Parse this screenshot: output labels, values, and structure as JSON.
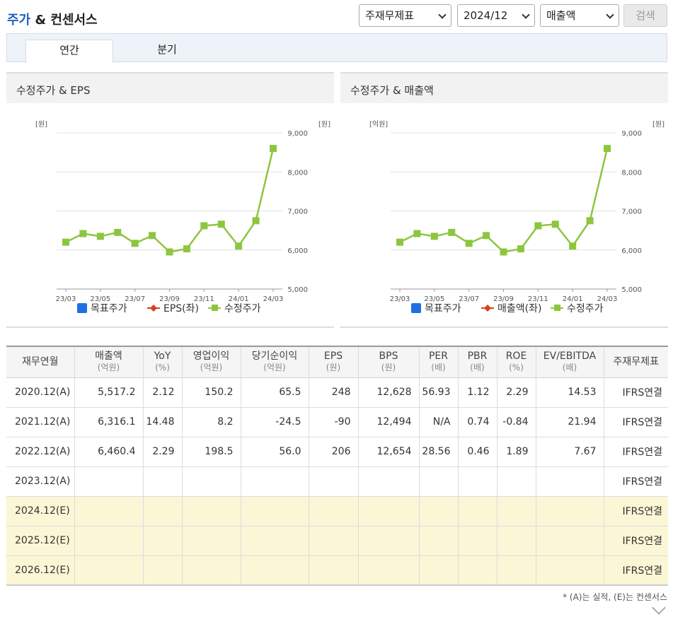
{
  "header": {
    "title_part1": "주가",
    "title_part2": " & 컨센서스",
    "select_type": "주재무제표",
    "select_period": "2024/12",
    "select_metric": "매출액",
    "search_button": "검색"
  },
  "tabs": [
    {
      "label": "연간",
      "active": true
    },
    {
      "label": "분기",
      "active": false
    }
  ],
  "panels": {
    "left": {
      "title": "수정주가 & EPS",
      "left_unit": "[원]",
      "right_unit": "[원]",
      "legend": [
        "목표주가",
        "EPS(좌)",
        "수정주가"
      ]
    },
    "right": {
      "title": "수정주가 & 매출액",
      "left_unit": "[억원]",
      "right_unit": "[원]",
      "legend": [
        "목표주가",
        "매출액(좌)",
        "수정주가"
      ]
    }
  },
  "chart_data": [
    {
      "type": "line",
      "title": "수정주가 & EPS",
      "x": [
        "23/03",
        "23/04",
        "23/05",
        "23/06",
        "23/07",
        "23/08",
        "23/09",
        "23/10",
        "23/11",
        "23/12",
        "24/01",
        "24/02",
        "24/03"
      ],
      "x_tick_labels": [
        "23/03",
        "23/05",
        "23/07",
        "23/09",
        "23/11",
        "24/01",
        "24/03"
      ],
      "y_right_ticks": [
        "5,000",
        "6,000",
        "7,000",
        "8,000",
        "9,000"
      ],
      "y_right_range": [
        5000,
        9000
      ],
      "series": [
        {
          "name": "수정주가",
          "axis": "right",
          "color": "#8cc63f",
          "values": [
            6200,
            6420,
            6350,
            6450,
            6170,
            6370,
            5950,
            6030,
            6620,
            6660,
            6100,
            6750,
            8600
          ]
        }
      ],
      "legend": [
        "목표주가",
        "EPS(좌)",
        "수정주가"
      ],
      "legend_position": "bottom",
      "grid": true
    },
    {
      "type": "line",
      "title": "수정주가 & 매출액",
      "x": [
        "23/03",
        "23/04",
        "23/05",
        "23/06",
        "23/07",
        "23/08",
        "23/09",
        "23/10",
        "23/11",
        "23/12",
        "24/01",
        "24/02",
        "24/03"
      ],
      "x_tick_labels": [
        "23/03",
        "23/05",
        "23/07",
        "23/09",
        "23/11",
        "24/01",
        "24/03"
      ],
      "y_right_ticks": [
        "5,000",
        "6,000",
        "7,000",
        "8,000",
        "9,000"
      ],
      "y_right_range": [
        5000,
        9000
      ],
      "series": [
        {
          "name": "수정주가",
          "axis": "right",
          "color": "#8cc63f",
          "values": [
            6200,
            6420,
            6350,
            6450,
            6170,
            6370,
            5950,
            6030,
            6620,
            6660,
            6100,
            6750,
            8600
          ]
        }
      ],
      "legend": [
        "목표주가",
        "매출액(좌)",
        "수정주가"
      ],
      "legend_position": "bottom",
      "grid": true
    }
  ],
  "legend_colors": {
    "target": "#1f6fe0",
    "eps": "#d9401b",
    "price": "#8cc63f"
  },
  "table": {
    "headers": [
      {
        "label": "재무연월",
        "unit": ""
      },
      {
        "label": "매출액",
        "unit": "(억원)"
      },
      {
        "label": "YoY",
        "unit": "(%)"
      },
      {
        "label": "영업이익",
        "unit": "(억원)"
      },
      {
        "label": "당기순이익",
        "unit": "(억원)"
      },
      {
        "label": "EPS",
        "unit": "(원)"
      },
      {
        "label": "BPS",
        "unit": "(원)"
      },
      {
        "label": "PER",
        "unit": "(배)"
      },
      {
        "label": "PBR",
        "unit": "(배)"
      },
      {
        "label": "ROE",
        "unit": "(%)"
      },
      {
        "label": "EV/EBITDA",
        "unit": "(배)"
      },
      {
        "label": "주재무제표",
        "unit": ""
      }
    ],
    "rows": [
      [
        "2020.12(A)",
        "5,517.2",
        "2.12",
        "150.2",
        "65.5",
        "248",
        "12,628",
        "56.93",
        "1.12",
        "2.29",
        "14.53",
        "IFRS연결"
      ],
      [
        "2021.12(A)",
        "6,316.1",
        "14.48",
        "8.2",
        "-24.5",
        "-90",
        "12,494",
        "N/A",
        "0.74",
        "-0.84",
        "21.94",
        "IFRS연결"
      ],
      [
        "2022.12(A)",
        "6,460.4",
        "2.29",
        "198.5",
        "56.0",
        "206",
        "12,654",
        "28.56",
        "0.46",
        "1.89",
        "7.67",
        "IFRS연결"
      ],
      [
        "2023.12(A)",
        "",
        "",
        "",
        "",
        "",
        "",
        "",
        "",
        "",
        "",
        "IFRS연결"
      ],
      [
        "2024.12(E)",
        "",
        "",
        "",
        "",
        "",
        "",
        "",
        "",
        "",
        "",
        "IFRS연결"
      ],
      [
        "2025.12(E)",
        "",
        "",
        "",
        "",
        "",
        "",
        "",
        "",
        "",
        "",
        "IFRS연결"
      ],
      [
        "2026.12(E)",
        "",
        "",
        "",
        "",
        "",
        "",
        "",
        "",
        "",
        "",
        "IFRS연결"
      ]
    ]
  },
  "footnote": "* (A)는 실적, (E)는 컨센서스"
}
